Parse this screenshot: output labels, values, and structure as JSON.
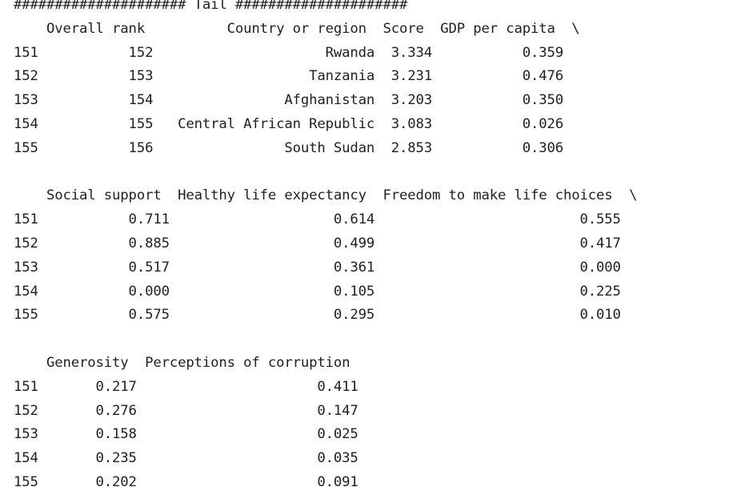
{
  "banner": "##################### Tail #####################",
  "blocks": [
    {
      "header": "    Overall rank          Country or region  Score  GDP per capita  \\",
      "rows": [
        "151           152                     Rwanda  3.334           0.359",
        "152           153                   Tanzania  3.231           0.476",
        "153           154                Afghanistan  3.203           0.350",
        "154           155   Central African Republic  3.083           0.026",
        "155           156                South Sudan  2.853           0.306"
      ]
    },
    {
      "header": "    Social support  Healthy life expectancy  Freedom to make life choices  \\",
      "rows": [
        "151           0.711                    0.614                         0.555",
        "152           0.885                    0.499                         0.417",
        "153           0.517                    0.361                         0.000",
        "154           0.000                    0.105                         0.225",
        "155           0.575                    0.295                         0.010"
      ]
    },
    {
      "header": "    Generosity  Perceptions of corruption",
      "rows": [
        "151       0.217                      0.411",
        "152       0.276                      0.147",
        "153       0.158                      0.025",
        "154       0.235                      0.035",
        "155       0.202                      0.091"
      ]
    }
  ]
}
